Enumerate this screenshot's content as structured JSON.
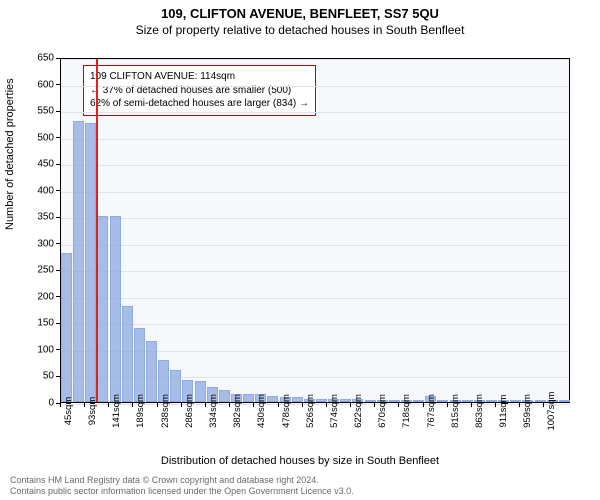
{
  "titles": {
    "main": "109, CLIFTON AVENUE, BENFLEET, SS7 5QU",
    "sub": "Size of property relative to detached houses in South Benfleet",
    "y_axis": "Number of detached properties",
    "x_axis": "Distribution of detached houses by size in South Benfleet"
  },
  "legend": {
    "line1": "109 CLIFTON AVENUE: 114sqm",
    "line2": "← 37% of detached houses are smaller (500)",
    "line3": "62% of semi-detached houses are larger (834) →"
  },
  "footer": {
    "line1": "Contains HM Land Registry data © Crown copyright and database right 2024.",
    "line2": "Contains public sector information licensed under the Open Government Licence v3.0."
  },
  "chart": {
    "type": "bar",
    "background_color": "#f6f8fb",
    "grid_color": "#e0e4ea",
    "bar_color": "rgba(140,170,225,0.75)",
    "ref_line_color": "#d22",
    "ylim": [
      0,
      650
    ],
    "yticks": [
      0,
      50,
      100,
      150,
      200,
      250,
      300,
      350,
      400,
      450,
      500,
      550,
      600,
      650
    ],
    "x_min": 45,
    "x_max": 1060,
    "x_label_categories": [
      "45sqm",
      "93sqm",
      "141sqm",
      "189sqm",
      "238sqm",
      "286sqm",
      "334sqm",
      "382sqm",
      "430sqm",
      "478sqm",
      "526sqm",
      "574sqm",
      "622sqm",
      "670sqm",
      "718sqm",
      "767sqm",
      "815sqm",
      "863sqm",
      "911sqm",
      "959sqm",
      "1007sqm"
    ],
    "ref_line_x": 114,
    "bars": [
      {
        "x": 45,
        "v": 280
      },
      {
        "x": 69,
        "v": 530
      },
      {
        "x": 93,
        "v": 525
      },
      {
        "x": 117,
        "v": 350
      },
      {
        "x": 141,
        "v": 350
      },
      {
        "x": 165,
        "v": 180
      },
      {
        "x": 189,
        "v": 140
      },
      {
        "x": 213,
        "v": 115
      },
      {
        "x": 238,
        "v": 80
      },
      {
        "x": 262,
        "v": 60
      },
      {
        "x": 286,
        "v": 42
      },
      {
        "x": 310,
        "v": 40
      },
      {
        "x": 334,
        "v": 28
      },
      {
        "x": 358,
        "v": 22
      },
      {
        "x": 382,
        "v": 15
      },
      {
        "x": 406,
        "v": 15
      },
      {
        "x": 430,
        "v": 15
      },
      {
        "x": 454,
        "v": 12
      },
      {
        "x": 478,
        "v": 10
      },
      {
        "x": 502,
        "v": 10
      },
      {
        "x": 526,
        "v": 6
      },
      {
        "x": 550,
        "v": 6
      },
      {
        "x": 574,
        "v": 5
      },
      {
        "x": 598,
        "v": 5
      },
      {
        "x": 622,
        "v": 5
      },
      {
        "x": 646,
        "v": 2
      },
      {
        "x": 670,
        "v": 2
      },
      {
        "x": 694,
        "v": 2
      },
      {
        "x": 718,
        "v": 2
      },
      {
        "x": 742,
        "v": 2
      },
      {
        "x": 767,
        "v": 12
      },
      {
        "x": 791,
        "v": 2
      },
      {
        "x": 815,
        "v": 2
      },
      {
        "x": 839,
        "v": 2
      },
      {
        "x": 863,
        "v": 2
      },
      {
        "x": 887,
        "v": 2
      },
      {
        "x": 911,
        "v": 2
      },
      {
        "x": 935,
        "v": 2
      },
      {
        "x": 959,
        "v": 2
      },
      {
        "x": 983,
        "v": 2
      },
      {
        "x": 1007,
        "v": 2
      },
      {
        "x": 1031,
        "v": 2
      }
    ]
  }
}
